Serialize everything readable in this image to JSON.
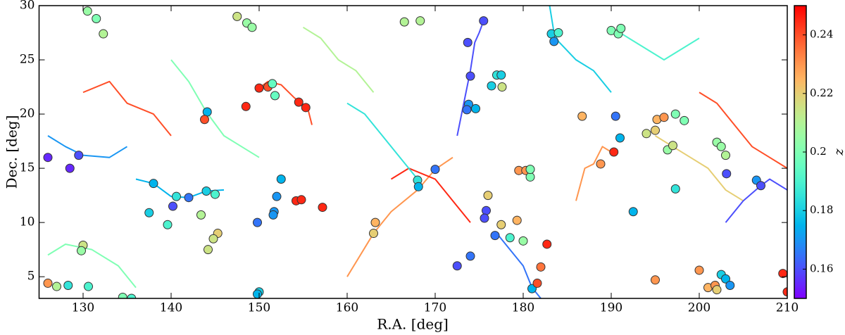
{
  "chart_data": {
    "type": "scatter",
    "xlabel": "R.A. [deg]",
    "ylabel": "Dec. [deg]",
    "colorbar_label": "z",
    "xlim": [
      125,
      210
    ],
    "ylim": [
      3,
      30
    ],
    "zlim": [
      0.15,
      0.25
    ],
    "xticks": [
      130,
      140,
      150,
      160,
      170,
      180,
      190,
      200,
      210
    ],
    "yticks": [
      5,
      10,
      15,
      20,
      25,
      30
    ],
    "zticks": [
      0.16,
      0.18,
      0.2,
      0.22,
      0.24
    ],
    "colormap": "rainbow",
    "x": [
      126,
      128.5,
      129.5,
      130.5,
      131.5,
      132.3,
      130,
      129.8,
      126,
      127,
      128.3,
      130.6,
      134.5,
      135.5,
      137.5,
      138,
      140.2,
      139.6,
      140.6,
      142,
      143.4,
      144,
      145,
      145.3,
      144.8,
      144.2,
      144.1,
      143.8,
      147.5,
      148.6,
      149.2,
      148.5,
      150,
      151,
      151.5,
      151.8,
      154.5,
      155.3,
      152,
      152.5,
      151.7,
      151.6,
      149.8,
      154.2,
      154.8,
      157.2,
      150,
      149.8,
      163,
      163.2,
      166.5,
      168.3,
      168,
      168.1,
      170,
      172.5,
      174,
      173.7,
      175.5,
      174,
      173.8,
      173.6,
      174.6,
      175.8,
      175.6,
      176,
      176.8,
      177.5,
      176.4,
      177,
      177.5,
      177.6,
      178.5,
      179.3,
      180,
      179.5,
      180.3,
      180.8,
      180.8,
      181,
      181.6,
      182,
      182.7,
      183.2,
      184,
      183.5,
      186.7,
      188.8,
      190.3,
      190.5,
      191,
      190,
      190.8,
      191.1,
      192.5,
      194,
      195,
      195.2,
      196,
      197.3,
      198.3,
      196.4,
      197,
      197.3,
      195,
      200,
      201,
      201.8,
      202,
      202.5,
      203,
      203.5,
      202,
      202.5,
      203,
      203.1,
      206.5,
      207,
      209.5,
      210
    ],
    "y": [
      16,
      15,
      16.2,
      29.5,
      28.8,
      27.4,
      7.9,
      7.4,
      4.4,
      4.1,
      4.2,
      4.1,
      3.1,
      3,
      10.9,
      13.6,
      11.5,
      9.8,
      12.4,
      12.3,
      10.7,
      12.9,
      12.6,
      9,
      8.5,
      7.5,
      20.2,
      19.5,
      29,
      28.4,
      28,
      20.7,
      22.4,
      22.5,
      22.8,
      21.7,
      21.1,
      20.6,
      12.4,
      14,
      11,
      10.7,
      10,
      12,
      12.1,
      11.4,
      3.6,
      3.4,
      9,
      10,
      28.5,
      28.6,
      13.9,
      13.3,
      14.9,
      6,
      6.9,
      26.6,
      28.6,
      23.5,
      20.9,
      20.4,
      20.5,
      11.1,
      10.4,
      12.5,
      8.8,
      9.8,
      22.6,
      23.6,
      23.6,
      22.5,
      8.6,
      10.2,
      8.3,
      14.8,
      14.8,
      14.2,
      14.9,
      3.9,
      4.4,
      5.9,
      8,
      27.4,
      27.5,
      26.7,
      19.8,
      15.4,
      16.5,
      19.8,
      17.8,
      27.7,
      27.4,
      27.9,
      11,
      18.2,
      18.5,
      19.5,
      19.7,
      20,
      19.4,
      16.7,
      17.1,
      13.1,
      4.7,
      5.6,
      4,
      4.2,
      3.8,
      5.2,
      4.8,
      4.2,
      17.4,
      17,
      16.2,
      14.5,
      13.9,
      13.4,
      5.3,
      3.6
    ],
    "z": [
      0.155,
      0.155,
      0.16,
      0.205,
      0.2,
      0.21,
      0.215,
      0.205,
      0.23,
      0.21,
      0.185,
      0.19,
      0.2,
      0.19,
      0.18,
      0.175,
      0.16,
      0.19,
      0.185,
      0.165,
      0.21,
      0.18,
      0.19,
      0.22,
      0.215,
      0.215,
      0.175,
      0.24,
      0.215,
      0.205,
      0.205,
      0.245,
      0.245,
      0.24,
      0.195,
      0.195,
      0.245,
      0.245,
      0.17,
      0.175,
      0.17,
      0.17,
      0.165,
      0.245,
      0.245,
      0.245,
      0.18,
      0.175,
      0.22,
      0.225,
      0.21,
      0.21,
      0.185,
      0.175,
      0.165,
      0.16,
      0.165,
      0.16,
      0.16,
      0.16,
      0.17,
      0.165,
      0.175,
      0.16,
      0.16,
      0.22,
      0.165,
      0.22,
      0.18,
      0.185,
      0.18,
      0.215,
      0.19,
      0.225,
      0.205,
      0.23,
      0.23,
      0.2,
      0.2,
      0.175,
      0.24,
      0.235,
      0.245,
      0.18,
      0.19,
      0.17,
      0.225,
      0.23,
      0.245,
      0.165,
      0.175,
      0.2,
      0.2,
      0.2,
      0.175,
      0.215,
      0.22,
      0.225,
      0.23,
      0.2,
      0.2,
      0.205,
      0.215,
      0.185,
      0.23,
      0.23,
      0.225,
      0.23,
      0.22,
      0.18,
      0.175,
      0.17,
      0.205,
      0.205,
      0.21,
      0.16,
      0.17,
      0.16,
      0.245,
      0.245
    ],
    "filaments": [
      {
        "z": 0.16,
        "x": [
          175.5,
          175,
          174.5,
          174,
          173.5,
          173,
          172.5
        ],
        "y": [
          28.6,
          27.5,
          26.6,
          24,
          22,
          20,
          18
        ]
      },
      {
        "z": 0.24,
        "x": [
          150,
          151,
          152.5,
          154,
          155.5,
          156
        ],
        "y": [
          22.4,
          23,
          22.7,
          21.5,
          20.6,
          19
        ]
      },
      {
        "z": 0.17,
        "x": [
          126,
          128,
          130,
          133,
          135
        ],
        "y": [
          18,
          17,
          16.2,
          16,
          17
        ]
      },
      {
        "z": 0.2,
        "x": [
          140,
          142,
          144,
          146,
          148,
          150
        ],
        "y": [
          25,
          23,
          20.2,
          18,
          17,
          16
        ]
      },
      {
        "z": 0.23,
        "x": [
          160,
          163,
          165,
          168,
          170,
          172
        ],
        "y": [
          5,
          9,
          11,
          13,
          14.9,
          16
        ]
      },
      {
        "z": 0.18,
        "x": [
          183,
          183.5,
          184,
          186,
          188,
          190
        ],
        "y": [
          30,
          27.5,
          26.7,
          25,
          24,
          22
        ]
      },
      {
        "z": 0.245,
        "x": [
          165,
          167,
          170,
          172,
          174
        ],
        "y": [
          14,
          15,
          14,
          12,
          10
        ]
      },
      {
        "z": 0.19,
        "x": [
          190,
          192,
          194,
          196,
          198,
          200
        ],
        "y": [
          28,
          27,
          26,
          25,
          26,
          27
        ]
      },
      {
        "z": 0.165,
        "x": [
          177,
          178,
          179,
          180,
          181,
          182
        ],
        "y": [
          9,
          8,
          7,
          6,
          4,
          3
        ]
      },
      {
        "z": 0.22,
        "x": [
          195,
          197,
          199,
          201,
          203,
          205
        ],
        "y": [
          18,
          17,
          16,
          15,
          13,
          12
        ]
      },
      {
        "z": 0.175,
        "x": [
          136,
          138,
          140,
          142,
          144,
          146
        ],
        "y": [
          14,
          13.6,
          12.4,
          12.3,
          12.9,
          13
        ]
      },
      {
        "z": 0.21,
        "x": [
          155,
          157,
          159,
          161,
          163
        ],
        "y": [
          28,
          27,
          25,
          24,
          22
        ]
      },
      {
        "z": 0.24,
        "x": [
          200,
          202,
          204,
          206,
          208,
          210
        ],
        "y": [
          22,
          21,
          19,
          17,
          16,
          15
        ]
      },
      {
        "z": 0.2,
        "x": [
          126,
          128,
          131,
          134,
          136
        ],
        "y": [
          7,
          8,
          7.5,
          6,
          4
        ]
      },
      {
        "z": 0.16,
        "x": [
          203,
          205,
          207,
          208,
          210
        ],
        "y": [
          10,
          12,
          13.4,
          14,
          13
        ]
      },
      {
        "z": 0.23,
        "x": [
          186,
          187,
          188,
          189,
          190
        ],
        "y": [
          12,
          15,
          15.4,
          17,
          16.5
        ]
      },
      {
        "z": 0.185,
        "x": [
          160,
          162,
          164,
          166,
          168
        ],
        "y": [
          21,
          20,
          18,
          16,
          14
        ]
      },
      {
        "z": 0.24,
        "x": [
          130,
          133,
          135,
          138,
          140
        ],
        "y": [
          22,
          23,
          21,
          20,
          18
        ]
      }
    ]
  }
}
